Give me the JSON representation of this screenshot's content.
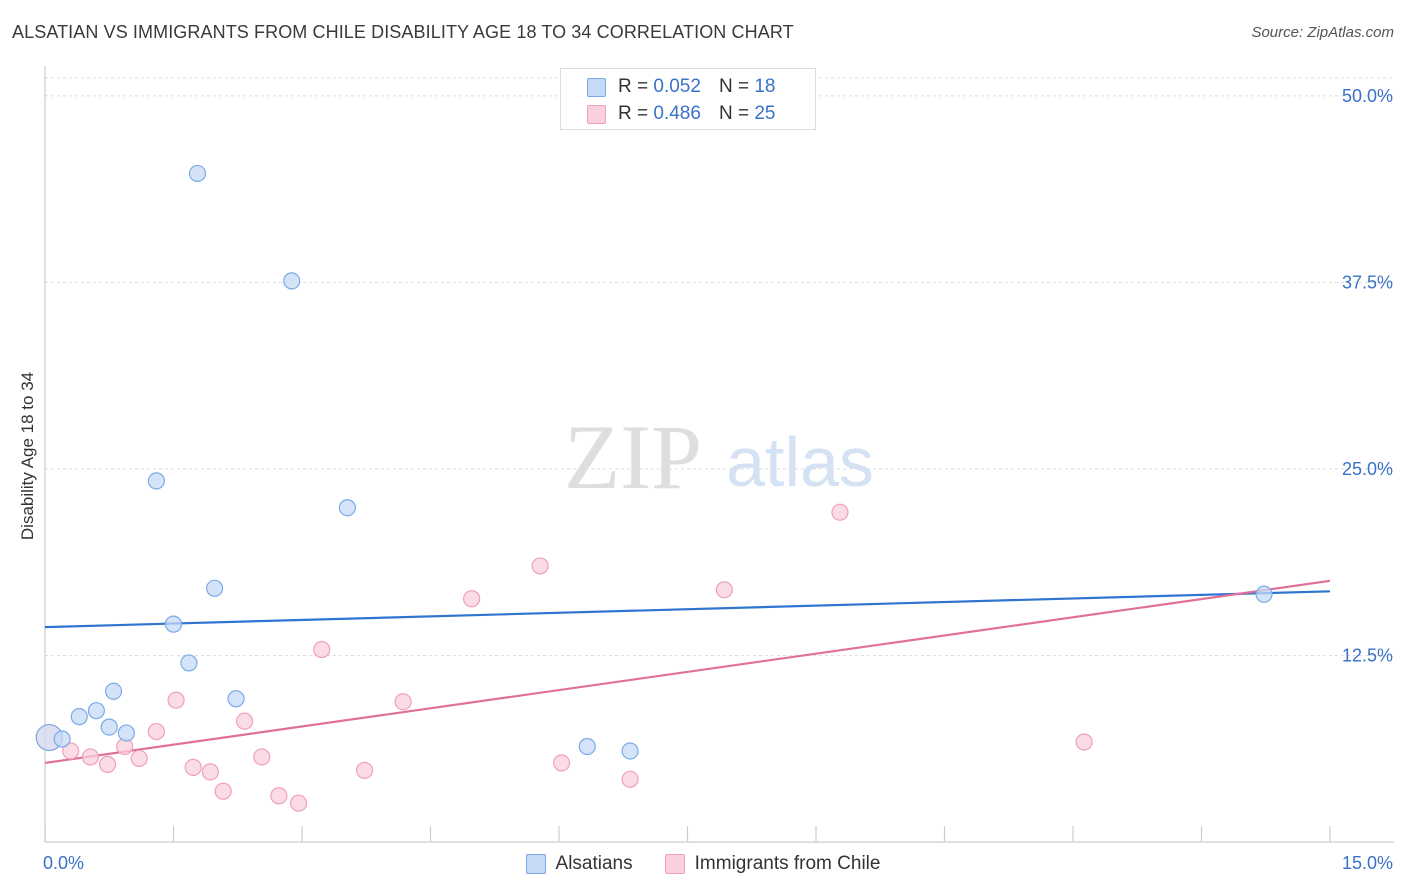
{
  "chart_data": {
    "type": "scatter",
    "title": "ALSATIAN VS IMMIGRANTS FROM CHILE DISABILITY AGE 18 TO 34 CORRELATION CHART",
    "source": "Source: ZipAtlas.com",
    "watermark": {
      "part1": "ZIP",
      "part2": "atlas"
    },
    "ylabel": "Disability Age 18 to 34",
    "xlim": [
      0,
      15
    ],
    "ylim": [
      0,
      52
    ],
    "x_tick_labels": {
      "min": "0.0%",
      "max": "15.0%"
    },
    "y_ticks": [
      {
        "value": 12.5,
        "label": "12.5%"
      },
      {
        "value": 25.0,
        "label": "25.0%"
      },
      {
        "value": 37.5,
        "label": "37.5%"
      },
      {
        "value": 50.0,
        "label": "50.0%"
      }
    ],
    "grid": true,
    "legend_position": "top-center",
    "series": [
      {
        "name": "Alsatians",
        "color": "#7aaae8",
        "fill": "#c5daf5",
        "line_color": "#2f74d0",
        "r_label": "R =",
        "r_value": "0.052",
        "n_label": "N =",
        "n_value": "18",
        "trend": {
          "x": [
            0,
            15
          ],
          "y": [
            14.4,
            16.8
          ]
        },
        "points": [
          {
            "x": 0.05,
            "y": 7.0
          },
          {
            "x": 0.2,
            "y": 6.9
          },
          {
            "x": 0.4,
            "y": 8.4
          },
          {
            "x": 0.6,
            "y": 8.8
          },
          {
            "x": 0.8,
            "y": 10.1
          },
          {
            "x": 0.75,
            "y": 7.7
          },
          {
            "x": 0.95,
            "y": 7.3
          },
          {
            "x": 1.3,
            "y": 24.2
          },
          {
            "x": 1.5,
            "y": 14.6
          },
          {
            "x": 1.68,
            "y": 12.0
          },
          {
            "x": 1.78,
            "y": 44.8
          },
          {
            "x": 1.98,
            "y": 17.0
          },
          {
            "x": 2.23,
            "y": 9.6
          },
          {
            "x": 2.88,
            "y": 37.6
          },
          {
            "x": 3.53,
            "y": 22.4
          },
          {
            "x": 6.33,
            "y": 6.4
          },
          {
            "x": 6.83,
            "y": 6.1
          },
          {
            "x": 14.23,
            "y": 16.6
          }
        ]
      },
      {
        "name": "Immigrants from Chile",
        "color": "#f0a0b8",
        "fill": "#f9d0dc",
        "line_color": "#e0709a",
        "r_label": "R =",
        "r_value": "0.486",
        "n_label": "N =",
        "n_value": "25",
        "trend": {
          "x": [
            0,
            15
          ],
          "y": [
            5.3,
            17.5
          ]
        },
        "points": [
          {
            "x": 0.05,
            "y": 7.0
          },
          {
            "x": 0.3,
            "y": 6.1
          },
          {
            "x": 0.53,
            "y": 5.7
          },
          {
            "x": 0.73,
            "y": 5.2
          },
          {
            "x": 0.93,
            "y": 6.4
          },
          {
            "x": 1.1,
            "y": 5.6
          },
          {
            "x": 1.3,
            "y": 7.4
          },
          {
            "x": 1.53,
            "y": 9.5
          },
          {
            "x": 1.73,
            "y": 5.0
          },
          {
            "x": 1.93,
            "y": 4.7
          },
          {
            "x": 2.08,
            "y": 3.4
          },
          {
            "x": 2.33,
            "y": 8.1
          },
          {
            "x": 2.53,
            "y": 5.7
          },
          {
            "x": 2.73,
            "y": 3.1
          },
          {
            "x": 2.96,
            "y": 2.6
          },
          {
            "x": 3.23,
            "y": 12.9
          },
          {
            "x": 3.73,
            "y": 4.8
          },
          {
            "x": 4.18,
            "y": 9.4
          },
          {
            "x": 4.98,
            "y": 16.3
          },
          {
            "x": 5.78,
            "y": 18.5
          },
          {
            "x": 6.03,
            "y": 5.3
          },
          {
            "x": 6.83,
            "y": 4.2
          },
          {
            "x": 7.93,
            "y": 16.9
          },
          {
            "x": 9.28,
            "y": 22.1
          },
          {
            "x": 12.13,
            "y": 6.7
          }
        ]
      }
    ]
  }
}
